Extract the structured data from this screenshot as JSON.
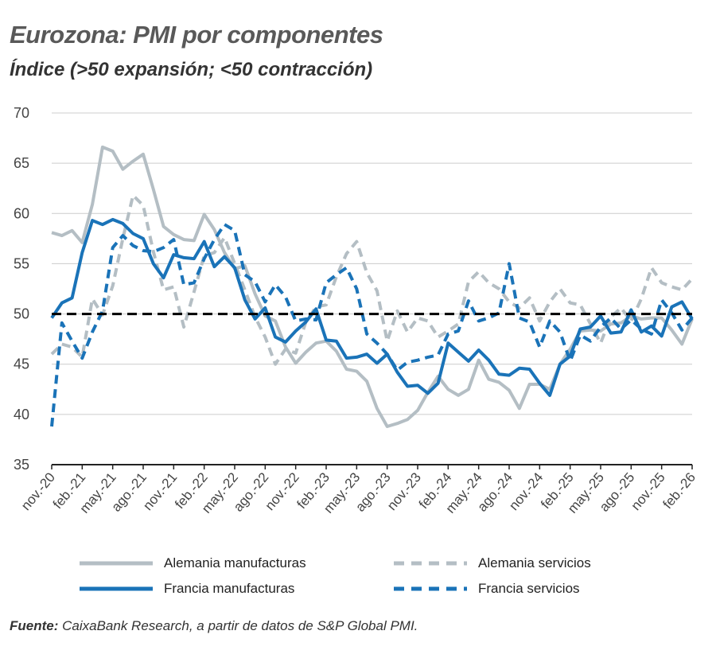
{
  "title": "Eurozona: PMI por componentes",
  "subtitle": "Índice (>50 expansión; <50 contracción)",
  "source_label": "Fuente:",
  "source_text": "CaixaBank Research, a partir de datos de S&P Global PMI.",
  "colors": {
    "de_manuf": "#b4bec4",
    "de_serv": "#b4bec4",
    "fr_manuf": "#1a73b8",
    "fr_serv": "#1a73b8",
    "reference": "#000000",
    "grid": "#cccccc"
  },
  "chart_data": {
    "type": "line",
    "ylim": [
      35,
      70
    ],
    "yticks": [
      35,
      40,
      45,
      50,
      55,
      60,
      65,
      70
    ],
    "reference_line": 50,
    "grid": "horizontal",
    "legend_position": "bottom",
    "x_tick_labels": [
      "nov.-20",
      "feb.-21",
      "may.-21",
      "ago.-21",
      "nov.-21",
      "feb.-22",
      "may.-22",
      "ago.-22",
      "nov.-22",
      "feb.-23",
      "may.-23",
      "ago.-23",
      "nov.-23",
      "feb.-24",
      "may.-24",
      "ago.-24",
      "nov.-24",
      "feb.-25",
      "may.-25",
      "ago.-25",
      "nov.-25",
      "feb.-26"
    ],
    "x": [
      "nov.-20",
      "dic.-20",
      "ene.-21",
      "feb.-21",
      "mar.-21",
      "abr.-21",
      "may.-21",
      "jun.-21",
      "jul.-21",
      "ago.-21",
      "sep.-21",
      "oct.-21",
      "nov.-21",
      "dic.-21",
      "ene.-22",
      "feb.-22",
      "mar.-22",
      "abr.-22",
      "may.-22",
      "jun.-22",
      "jul.-22",
      "ago.-22",
      "sep.-22",
      "oct.-22",
      "nov.-22",
      "dic.-22",
      "ene.-23",
      "feb.-23",
      "mar.-23",
      "abr.-23",
      "may.-23",
      "jun.-23",
      "jul.-23",
      "ago.-23",
      "sep.-23",
      "oct.-23",
      "nov.-23",
      "dic.-23",
      "ene.-24",
      "feb.-24",
      "mar.-24",
      "abr.-24",
      "may.-24",
      "jun.-24",
      "jul.-24",
      "ago.-24",
      "sep.-24",
      "oct.-24",
      "nov.-24",
      "dic.-24",
      "ene.-25",
      "feb.-25",
      "mar.-25",
      "abr.-25",
      "may.-25",
      "jun.-25",
      "jul.-25",
      "ago.-25",
      "sep.-25",
      "oct.-25",
      "nov.-25",
      "dic.-25",
      "ene.-26",
      "feb.-26"
    ],
    "series": [
      {
        "name": "Alemania manufacturas",
        "key": "de_manuf",
        "style": "solid",
        "values": [
          58.1,
          57.8,
          58.3,
          57.1,
          60.9,
          66.6,
          66.2,
          64.4,
          65.2,
          65.9,
          62.4,
          58.7,
          57.9,
          57.4,
          57.3,
          59.9,
          58.4,
          56.1,
          54.5,
          54.8,
          52.0,
          49.8,
          49.3,
          46.7,
          45.1,
          46.2,
          47.1,
          47.3,
          46.3,
          44.5,
          44.3,
          43.3,
          40.6,
          38.8,
          39.1,
          39.5,
          40.4,
          42.2,
          43.8,
          42.5,
          41.9,
          42.5,
          45.4,
          43.5,
          43.2,
          42.4,
          40.6,
          43.0,
          43.0,
          42.5,
          45.0,
          46.5,
          48.3,
          48.4,
          48.3,
          49.0,
          49.1,
          49.8,
          49.5,
          49.6,
          49.6,
          48.4,
          47.0,
          49.5
        ]
      },
      {
        "name": "Alemania servicios",
        "key": "de_serv",
        "style": "dashed",
        "values": [
          46.0,
          47.0,
          46.7,
          45.7,
          51.5,
          49.9,
          52.8,
          57.5,
          61.8,
          60.8,
          56.2,
          52.4,
          52.7,
          48.7,
          52.2,
          55.8,
          56.1,
          57.6,
          55.0,
          52.4,
          49.7,
          47.7,
          45.0,
          46.5,
          46.1,
          49.2,
          50.7,
          50.9,
          53.7,
          56.0,
          57.2,
          54.1,
          52.3,
          47.3,
          50.3,
          48.2,
          49.6,
          49.3,
          47.7,
          48.3,
          49.0,
          53.2,
          54.2,
          53.1,
          52.5,
          51.2,
          50.6,
          51.6,
          49.3,
          51.2,
          52.5,
          51.1,
          50.9,
          49.0,
          47.1,
          49.7,
          50.6,
          49.3,
          51.5,
          54.6,
          53.1,
          52.7,
          52.4,
          53.5
        ]
      },
      {
        "name": "Francia manufacturas",
        "key": "fr_manuf",
        "style": "solid",
        "values": [
          49.6,
          51.1,
          51.6,
          56.1,
          59.3,
          58.9,
          59.4,
          59.0,
          58.0,
          57.5,
          55.0,
          53.6,
          55.9,
          55.6,
          55.5,
          57.2,
          54.7,
          55.7,
          54.6,
          51.4,
          49.5,
          50.6,
          47.7,
          47.2,
          48.3,
          49.2,
          50.5,
          47.4,
          47.3,
          45.6,
          45.7,
          46.0,
          45.1,
          46.0,
          44.2,
          42.8,
          42.9,
          42.1,
          43.1,
          47.1,
          46.2,
          45.3,
          46.4,
          45.4,
          44.0,
          43.9,
          44.6,
          44.5,
          43.1,
          41.9,
          45.0,
          45.8,
          48.5,
          48.7,
          49.8,
          48.1,
          48.2,
          50.4,
          48.2,
          48.8,
          47.8,
          50.7,
          51.2,
          49.5
        ]
      },
      {
        "name": "Francia servicios",
        "key": "fr_serv",
        "style": "dashed",
        "values": [
          38.8,
          49.1,
          47.3,
          45.6,
          48.2,
          50.3,
          56.6,
          57.8,
          56.8,
          56.3,
          56.2,
          56.6,
          57.4,
          52.9,
          53.1,
          55.5,
          57.4,
          58.9,
          58.3,
          53.9,
          53.2,
          51.2,
          52.9,
          51.7,
          49.3,
          49.5,
          49.4,
          53.1,
          53.9,
          54.6,
          52.5,
          48.0,
          47.1,
          46.0,
          44.4,
          45.2,
          45.4,
          45.7,
          45.9,
          48.0,
          48.3,
          51.3,
          49.3,
          49.6,
          50.1,
          55.0,
          49.6,
          49.2,
          46.7,
          49.3,
          48.2,
          45.3,
          47.9,
          47.3,
          48.7,
          49.6,
          48.5,
          49.4,
          48.5,
          48.0,
          51.4,
          50.1,
          48.4,
          49.6
        ]
      }
    ]
  },
  "legend": {
    "items": [
      {
        "label": "Alemania manufacturas",
        "key": "de_manuf",
        "style": "solid"
      },
      {
        "label": "Alemania servicios",
        "key": "de_serv",
        "style": "dashed"
      },
      {
        "label": "Francia manufacturas",
        "key": "fr_manuf",
        "style": "solid"
      },
      {
        "label": "Francia servicios",
        "key": "fr_serv",
        "style": "dashed"
      }
    ]
  }
}
